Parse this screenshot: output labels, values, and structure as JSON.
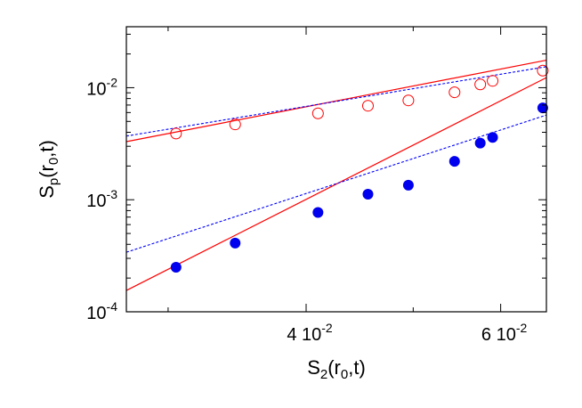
{
  "chart_data": {
    "type": "scatter",
    "title": "",
    "xlabel": {
      "base": "S",
      "sub": "2",
      "rest": "(r",
      "sub2": "0",
      "tail": ",t)"
    },
    "ylabel": {
      "base": "S",
      "sub": "p",
      "rest": "(r",
      "sub2": "0",
      "tail": ",t)"
    },
    "x_scale": "log",
    "y_scale": "log",
    "xlim": [
      0.0275,
      0.066
    ],
    "ylim": [
      0.0001,
      0.035
    ],
    "x_ticks": [
      {
        "value": 0.04,
        "mantissa": "4 10",
        "exp": "-2"
      },
      {
        "value": 0.06,
        "mantissa": "6 10",
        "exp": "-2"
      }
    ],
    "y_ticks": [
      {
        "value": 0.0001,
        "mantissa": "10",
        "exp": "-4"
      },
      {
        "value": 0.001,
        "mantissa": "10",
        "exp": "-3"
      },
      {
        "value": 0.01,
        "mantissa": "10",
        "exp": "-2"
      }
    ],
    "series": [
      {
        "marker": "open-circle",
        "color": "#ff0000",
        "x": [
          0.0305,
          0.0345,
          0.041,
          0.0455,
          0.0495,
          0.0545,
          0.0575,
          0.059,
          0.0655
        ],
        "y": [
          0.0039,
          0.0047,
          0.0059,
          0.0069,
          0.0077,
          0.0091,
          0.0107,
          0.0115,
          0.0142
        ]
      },
      {
        "marker": "filled-circle",
        "color": "#0000ee",
        "x": [
          0.0305,
          0.0345,
          0.041,
          0.0455,
          0.0495,
          0.0545,
          0.0575,
          0.059,
          0.0655
        ],
        "y": [
          0.00025,
          0.00041,
          0.00077,
          0.00112,
          0.00135,
          0.0022,
          0.0032,
          0.0036,
          0.0066
        ]
      }
    ],
    "fit_lines": [
      {
        "style": "solid",
        "color": "#ff0000",
        "x": [
          0.0275,
          0.066
        ],
        "y": [
          0.0033,
          0.0176
        ]
      },
      {
        "style": "dotted",
        "color": "#0000ff",
        "x": [
          0.0275,
          0.066
        ],
        "y": [
          0.0037,
          0.0154
        ]
      },
      {
        "style": "solid",
        "color": "#ff0000",
        "x": [
          0.0275,
          0.066
        ],
        "y": [
          0.000155,
          0.0123
        ]
      },
      {
        "style": "dotted",
        "color": "#0000ff",
        "x": [
          0.0275,
          0.066
        ],
        "y": [
          0.00034,
          0.0057
        ]
      }
    ],
    "grid": false,
    "legend": "none"
  }
}
